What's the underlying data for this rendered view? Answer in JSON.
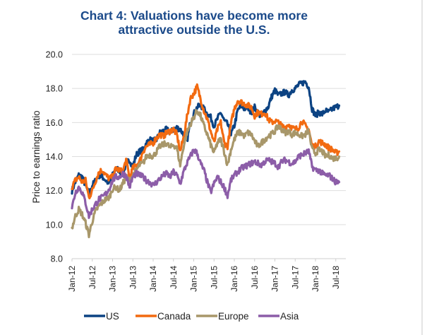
{
  "chart_data": {
    "type": "line",
    "title": "Chart 4: Valuations have become more attractive outside the U.S.",
    "title_lines": [
      "Chart 4: Valuations have become more",
      "attractive outside the U.S."
    ],
    "xlabel": "",
    "ylabel": "Price to earnings ratio",
    "ylim": [
      8.0,
      20.0
    ],
    "yticks": [
      "8.0",
      "10.0",
      "12.0",
      "14.0",
      "16.0",
      "18.0",
      "20.0"
    ],
    "ytick_values": [
      8,
      10,
      12,
      14,
      16,
      18,
      20
    ],
    "xticks": [
      "Jan-12",
      "Jul-12",
      "Jan-13",
      "Jul-13",
      "Jan-14",
      "Jul-14",
      "Jan-15",
      "Jul-15",
      "Jan-16",
      "Jul-16",
      "Jan-17",
      "Jul-17",
      "Jan-18",
      "Jul-18"
    ],
    "x_start": "Jan-12",
    "x_frequency": "monthly",
    "x_months_span": 80,
    "grid": true,
    "legend_position": "bottom",
    "series": [
      {
        "name": "US",
        "color": "#0c4383",
        "values": [
          12.0,
          12.5,
          12.9,
          12.8,
          12.3,
          11.8,
          12.3,
          12.6,
          12.9,
          12.8,
          12.6,
          12.4,
          12.9,
          13.3,
          13.2,
          12.9,
          13.6,
          13.8,
          13.4,
          14.1,
          14.3,
          14.4,
          14.8,
          15.0,
          14.9,
          15.0,
          15.4,
          15.5,
          15.6,
          15.4,
          15.6,
          15.7,
          15.6,
          15.3,
          14.9,
          16.0,
          16.5,
          16.9,
          17.0,
          16.8,
          16.5,
          16.3,
          15.8,
          16.2,
          16.6,
          16.1,
          15.9,
          15.3,
          15.8,
          16.7,
          17.0,
          16.8,
          16.9,
          16.6,
          16.9,
          16.6,
          16.3,
          16.7,
          16.9,
          17.5,
          17.9,
          17.6,
          17.7,
          17.8,
          17.6,
          17.9,
          18.0,
          18.2,
          18.3,
          18.4,
          18.1,
          16.8,
          16.4,
          16.6,
          16.5,
          16.7,
          16.6,
          16.8,
          16.9,
          17.0
        ]
      },
      {
        "name": "Canada",
        "color": "#f26a10",
        "values": [
          12.2,
          12.6,
          12.8,
          12.5,
          12.6,
          11.6,
          12.0,
          12.6,
          13.1,
          13.2,
          12.9,
          12.7,
          12.8,
          13.3,
          13.2,
          13.1,
          13.8,
          12.8,
          13.3,
          13.5,
          13.7,
          14.3,
          14.6,
          14.7,
          14.8,
          15.1,
          15.3,
          15.2,
          15.4,
          15.5,
          15.6,
          15.3,
          14.3,
          15.1,
          16.3,
          17.4,
          17.7,
          18.1,
          17.4,
          16.7,
          16.2,
          15.5,
          14.8,
          15.6,
          16.0,
          14.8,
          14.6,
          15.9,
          16.8,
          17.3,
          17.2,
          17.1,
          17.0,
          16.9,
          16.4,
          16.6,
          16.5,
          16.6,
          16.2,
          16.0,
          16.1,
          16.0,
          15.8,
          15.7,
          15.9,
          15.7,
          15.6,
          15.7,
          16.1,
          15.8,
          15.6,
          14.6,
          14.6,
          14.9,
          14.8,
          14.7,
          14.5,
          14.4,
          14.2,
          14.3
        ]
      },
      {
        "name": "Europe",
        "color": "#a8976a",
        "values": [
          9.8,
          10.5,
          10.9,
          10.6,
          10.1,
          9.4,
          10.2,
          10.8,
          11.1,
          11.3,
          11.5,
          11.6,
          12.1,
          12.2,
          12.0,
          12.4,
          12.8,
          12.6,
          12.9,
          13.2,
          13.5,
          13.6,
          14.0,
          14.1,
          14.0,
          14.3,
          14.6,
          14.7,
          14.8,
          14.5,
          14.7,
          14.5,
          13.5,
          14.6,
          15.4,
          15.9,
          16.3,
          16.7,
          16.4,
          15.8,
          15.3,
          14.7,
          14.2,
          14.8,
          15.0,
          14.3,
          13.5,
          14.4,
          15.0,
          15.4,
          15.4,
          15.2,
          15.4,
          15.3,
          14.9,
          14.6,
          14.8,
          15.0,
          15.2,
          15.3,
          15.5,
          15.8,
          15.6,
          15.4,
          15.5,
          15.3,
          15.4,
          15.3,
          15.2,
          15.3,
          15.5,
          14.4,
          14.2,
          14.4,
          14.3,
          14.0,
          14.1,
          13.9,
          13.9,
          14.0
        ]
      },
      {
        "name": "Asia",
        "color": "#8c5da8",
        "values": [
          11.0,
          11.9,
          12.2,
          11.9,
          11.3,
          10.5,
          10.9,
          11.2,
          11.5,
          11.6,
          11.8,
          12.1,
          12.6,
          12.8,
          12.8,
          13.0,
          12.9,
          12.2,
          12.8,
          13.0,
          12.9,
          12.8,
          12.6,
          12.5,
          12.3,
          12.5,
          12.7,
          12.9,
          13.0,
          12.8,
          13.1,
          12.9,
          12.4,
          13.1,
          13.6,
          14.0,
          14.4,
          14.2,
          13.6,
          13.2,
          12.5,
          11.9,
          12.4,
          12.8,
          12.5,
          12.2,
          11.7,
          12.6,
          12.9,
          13.1,
          13.3,
          13.4,
          13.5,
          13.6,
          13.7,
          13.6,
          13.5,
          13.7,
          13.8,
          13.7,
          13.6,
          13.4,
          13.7,
          13.8,
          13.7,
          13.6,
          13.7,
          14.0,
          14.1,
          14.2,
          14.3,
          13.4,
          13.2,
          13.2,
          13.0,
          12.9,
          12.9,
          12.7,
          12.5,
          12.5
        ]
      }
    ]
  }
}
